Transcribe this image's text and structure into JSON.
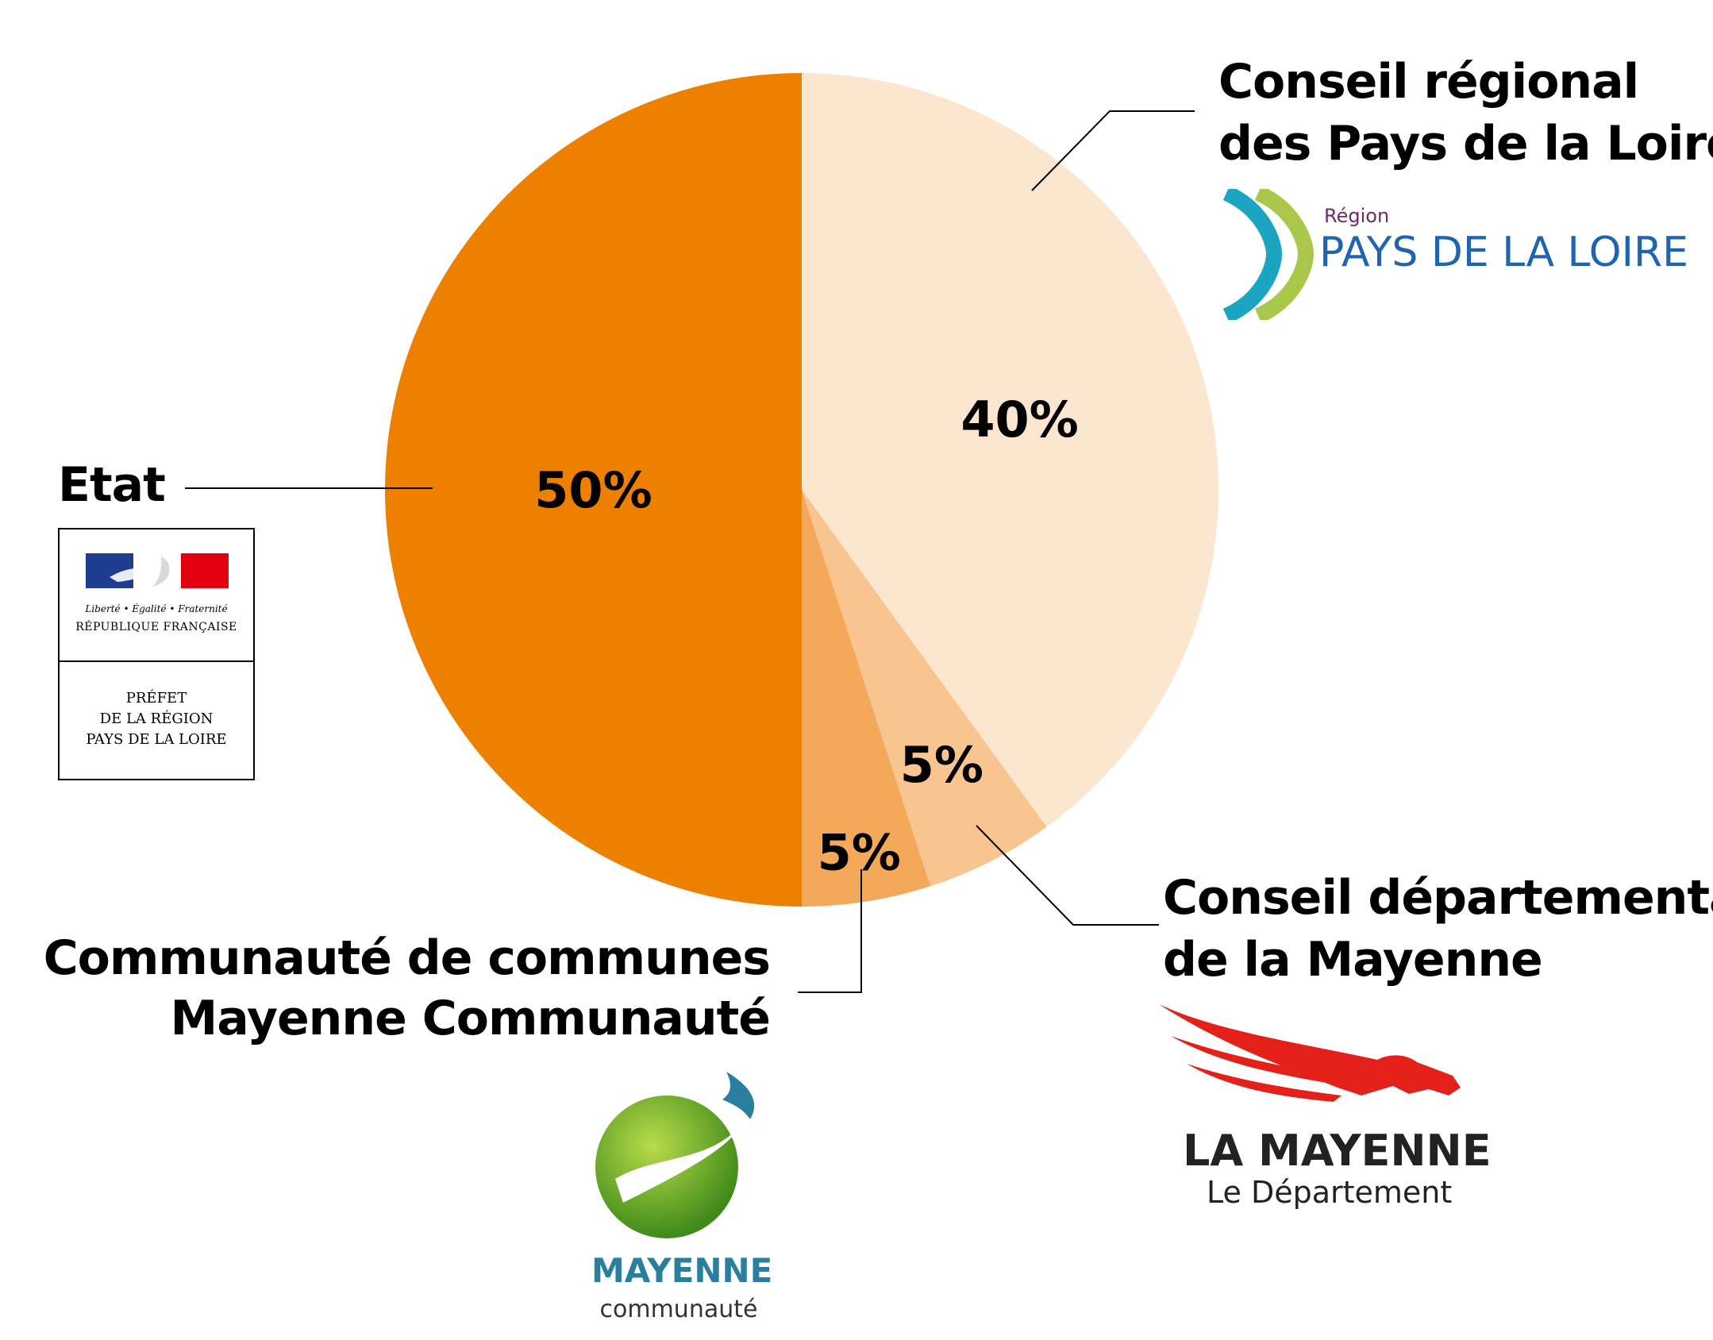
{
  "chart_data": {
    "type": "pie",
    "slices": [
      {
        "label": "Conseil régional des Pays de la Loire",
        "value": 40,
        "display": "40%",
        "color": "#fde6d0"
      },
      {
        "label": "Conseil départemental de la Mayenne",
        "value": 5,
        "display": "5%",
        "color": "#f8c590"
      },
      {
        "label": "Communauté de communes Mayenne Communauté",
        "value": 5,
        "display": "5%",
        "color": "#f4a85a"
      },
      {
        "label": "Etat",
        "value": 50,
        "display": "50%",
        "color": "#ee8000"
      }
    ]
  },
  "labels": {
    "etat": "Etat",
    "region_line1": "Conseil régional",
    "region_line2": "des Pays de la Loire",
    "departement_line1": "Conseil départemental",
    "departement_line2": "de la Mayenne",
    "communaute_line1": "Communauté de communes",
    "communaute_line2": "Mayenne Communauté"
  },
  "logos": {
    "republique": {
      "motto": "Liberté • Égalité • Fraternité",
      "name": "RÉPUBLIQUE FRANÇAISE",
      "prefet_line1": "PRÉFET",
      "prefet_line2": "DE LA RÉGION",
      "prefet_line3": "PAYS DE LA LOIRE"
    },
    "region": {
      "small": "Région",
      "name": "PAYS DE LA LOIRE"
    },
    "departement": {
      "name": "LA MAYENNE",
      "sub": "Le Département"
    },
    "communaute": {
      "name": "MAYENNE",
      "sub": "communauté"
    }
  }
}
